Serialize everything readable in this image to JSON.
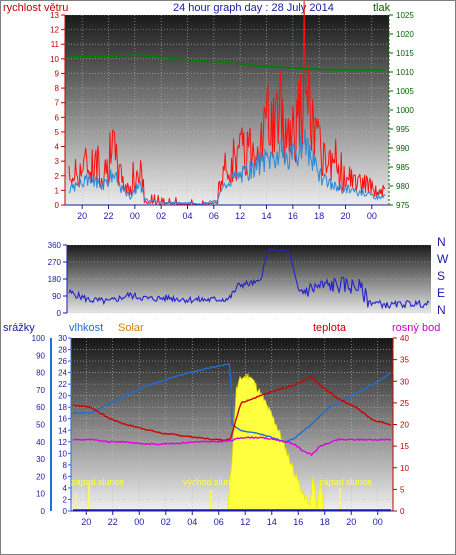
{
  "panel1": {
    "title": "24 hour graph day : 28 July 2014",
    "left_label": "rychlost větru",
    "right_label": "tlak",
    "left_ticks": [
      "0",
      "1",
      "2",
      "3",
      "4",
      "5",
      "6",
      "7",
      "8",
      "9",
      "10",
      "11",
      "12",
      "13"
    ],
    "right_ticks": [
      "975",
      "980",
      "985",
      "990",
      "995",
      "1000",
      "1005",
      "1010",
      "1015",
      "1020",
      "1025"
    ],
    "x_ticks": [
      "20",
      "22",
      "00",
      "02",
      "04",
      "06",
      "12",
      "14",
      "16",
      "18",
      "20",
      "00"
    ],
    "colors": {
      "left": "#c00000",
      "right": "#006400",
      "title": "#1a1aa8"
    }
  },
  "panel2": {
    "left_ticks": [
      "0",
      "90",
      "180",
      "270",
      "360"
    ],
    "right_ticks": [
      "N",
      "E",
      "S",
      "W",
      "N"
    ],
    "color": "#2222cc"
  },
  "panel3": {
    "labels": {
      "srazky": "srážky",
      "vlhkost": "vlhkost",
      "solar": "Solar",
      "teplota": "teplota",
      "rosny_bod": "rosný bod"
    },
    "srazky_ticks": [
      "0",
      "10",
      "20",
      "30",
      "40",
      "50",
      "60",
      "70",
      "80",
      "90",
      "100"
    ],
    "vlhkost_ticks": [
      "0",
      "2",
      "4",
      "6",
      "8",
      "10",
      "12",
      "14",
      "16",
      "18",
      "20",
      "22",
      "24",
      "26",
      "28",
      "30"
    ],
    "teplota_ticks": [
      "0",
      "5",
      "10",
      "15",
      "20",
      "25",
      "30",
      "35",
      "40"
    ],
    "x_ticks": [
      "20",
      "22",
      "00",
      "02",
      "04",
      "06",
      "12",
      "14",
      "16",
      "18",
      "20",
      "00"
    ],
    "annotations": [
      "západ slunce",
      "východ slunce",
      "západ slunce"
    ],
    "colors": {
      "srazky": "#1e6fd0",
      "vlhkost": "#1e6fd0",
      "solar": "#d08000",
      "teplota": "#c00000",
      "rosny_bod": "#cc00cc"
    }
  },
  "chart_data": [
    {
      "type": "line",
      "title": "24 hour graph day : 28 July 2014",
      "x_ticks": [
        "20",
        "22",
        "00",
        "02",
        "04",
        "06",
        "12",
        "14",
        "16",
        "18",
        "20",
        "00"
      ],
      "series": [
        {
          "name": "rychlost větru",
          "axis": "left",
          "ylim": [
            0,
            13
          ],
          "points": [
            [
              0,
              2
            ],
            [
              1,
              2.5
            ],
            [
              2,
              3
            ],
            [
              3,
              3
            ],
            [
              4,
              2.5
            ],
            [
              5,
              4
            ],
            [
              6,
              2
            ],
            [
              7,
              1
            ],
            [
              8,
              2.5
            ],
            [
              9,
              1
            ],
            [
              10,
              1
            ],
            [
              11,
              0.5
            ],
            [
              12,
              0.8
            ],
            [
              13,
              0.5
            ],
            [
              14,
              0.5
            ],
            [
              15,
              0.2
            ],
            [
              16,
              0.8
            ],
            [
              17,
              1
            ],
            [
              18,
              3
            ],
            [
              19,
              3.5
            ],
            [
              20,
              4
            ],
            [
              21,
              4.5
            ],
            [
              22,
              5.5
            ],
            [
              23,
              6
            ],
            [
              24,
              6.5
            ],
            [
              25,
              5.5
            ],
            [
              26,
              6.5
            ],
            [
              27,
              7.5
            ],
            [
              28,
              5
            ],
            [
              29,
              3
            ],
            [
              30,
              2.5
            ],
            [
              31,
              2
            ],
            [
              32,
              2
            ],
            [
              33,
              1.5
            ],
            [
              34,
              1.5
            ],
            [
              35,
              1
            ]
          ]
        },
        {
          "name": "tlak",
          "axis": "right",
          "ylim": [
            975,
            1025
          ],
          "points": [
            [
              0,
              1014
            ],
            [
              4,
              1014
            ],
            [
              8,
              1014.5
            ],
            [
              12,
              1013.5
            ],
            [
              18,
              1012.5
            ],
            [
              22,
              1011.5
            ],
            [
              26,
              1011
            ],
            [
              30,
              1010.5
            ],
            [
              36,
              1010.5
            ]
          ]
        }
      ]
    },
    {
      "type": "line",
      "x_ticks": [
        "20",
        "22",
        "00",
        "02",
        "04",
        "06",
        "12",
        "14",
        "16",
        "18",
        "20",
        "00"
      ],
      "ylim": [
        0,
        360
      ],
      "series": [
        {
          "name": "wind direction",
          "points": [
            [
              0,
              110
            ],
            [
              2,
              70
            ],
            [
              4,
              60
            ],
            [
              6,
              95
            ],
            [
              8,
              75
            ],
            [
              10,
              80
            ],
            [
              12,
              70
            ],
            [
              14,
              70
            ],
            [
              16,
              75
            ],
            [
              17,
              150
            ],
            [
              19,
              160
            ],
            [
              20,
              335
            ],
            [
              22,
              330
            ],
            [
              23,
              110
            ],
            [
              25,
              140
            ],
            [
              27,
              150
            ],
            [
              29,
              140
            ],
            [
              30,
              60
            ],
            [
              32,
              40
            ],
            [
              34,
              50
            ],
            [
              36,
              45
            ]
          ]
        }
      ]
    },
    {
      "type": "area",
      "x_ticks": [
        "20",
        "22",
        "00",
        "02",
        "04",
        "06",
        "12",
        "14",
        "16",
        "18",
        "20",
        "00"
      ],
      "series": [
        {
          "name": "vlhkost",
          "axis": "vlhkost",
          "ylim": [
            0,
            30
          ],
          "points": [
            [
              0,
              17
            ],
            [
              2,
              17
            ],
            [
              4,
              18.5
            ],
            [
              6,
              20
            ],
            [
              8,
              21.5
            ],
            [
              10,
              22.5
            ],
            [
              12,
              23.5
            ],
            [
              14,
              24.3
            ],
            [
              16,
              25
            ],
            [
              17.8,
              25.5
            ],
            [
              18,
              15
            ],
            [
              19,
              14
            ],
            [
              21,
              13.5
            ],
            [
              23,
              12.5
            ],
            [
              24,
              12
            ],
            [
              25,
              12.5
            ],
            [
              27,
              15
            ],
            [
              29,
              18
            ],
            [
              31,
              19.5
            ],
            [
              34,
              22
            ],
            [
              36,
              24
            ]
          ]
        },
        {
          "name": "teplota",
          "axis": "teplota",
          "ylim": [
            0,
            40
          ],
          "points": [
            [
              0,
              24.5
            ],
            [
              2,
              24
            ],
            [
              4,
              21.5
            ],
            [
              6,
              20
            ],
            [
              8,
              19
            ],
            [
              10,
              18
            ],
            [
              12,
              17.5
            ],
            [
              14,
              17
            ],
            [
              16,
              16.5
            ],
            [
              17.8,
              16.5
            ],
            [
              19,
              25
            ],
            [
              21,
              26.5
            ],
            [
              23,
              28
            ],
            [
              25,
              29
            ],
            [
              27,
              31
            ],
            [
              28,
              29
            ],
            [
              30,
              26
            ],
            [
              32,
              24
            ],
            [
              34,
              21
            ],
            [
              36,
              20
            ]
          ]
        },
        {
          "name": "rosný bod",
          "axis": "teplota",
          "ylim": [
            0,
            40
          ],
          "points": [
            [
              0,
              16.5
            ],
            [
              2,
              16.5
            ],
            [
              4,
              16
            ],
            [
              6,
              16
            ],
            [
              8,
              15.5
            ],
            [
              10,
              15.5
            ],
            [
              12,
              15.7
            ],
            [
              14,
              16
            ],
            [
              16,
              16
            ],
            [
              17.8,
              16.2
            ],
            [
              19,
              17
            ],
            [
              21,
              17
            ],
            [
              23,
              16.5
            ],
            [
              25,
              15.5
            ],
            [
              26,
              14
            ],
            [
              27,
              13
            ],
            [
              28,
              15
            ],
            [
              30,
              16.5
            ],
            [
              32,
              16.5
            ],
            [
              34,
              16.5
            ],
            [
              36,
              16.5
            ]
          ]
        },
        {
          "name": "Solar",
          "axis": "vlhkost",
          "ylim": [
            0,
            30
          ],
          "points": [
            [
              0,
              0
            ],
            [
              17.5,
              0
            ],
            [
              18,
              9
            ],
            [
              18.5,
              21
            ],
            [
              19,
              23
            ],
            [
              20,
              23.5
            ],
            [
              21,
              21
            ],
            [
              22,
              18
            ],
            [
              23,
              15
            ],
            [
              24,
              11
            ],
            [
              25,
              7
            ],
            [
              26,
              3
            ],
            [
              26.8,
              1
            ],
            [
              27.2,
              6
            ],
            [
              27.6,
              0.5
            ],
            [
              28,
              5
            ],
            [
              28.4,
              0
            ],
            [
              36,
              0
            ]
          ]
        },
        {
          "name": "srážky",
          "axis": "srazky",
          "ylim": [
            0,
            100
          ],
          "points": [
            [
              0,
              0
            ],
            [
              36,
              0
            ]
          ]
        }
      ]
    }
  ]
}
